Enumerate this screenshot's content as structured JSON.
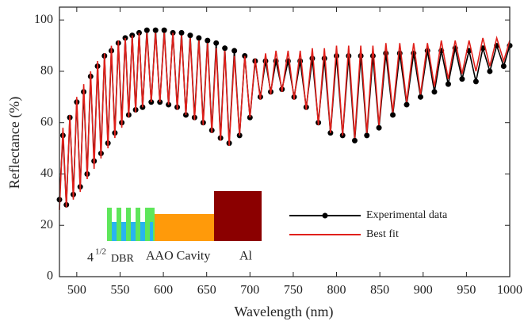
{
  "chart_data": {
    "type": "line",
    "xlabel": "Wavelength (nm)",
    "ylabel": "Reflectance (%)",
    "x": [
      480,
      484,
      488,
      492,
      496,
      500,
      504,
      508,
      512,
      516,
      520,
      524,
      528,
      532,
      536,
      540,
      544,
      548,
      552,
      556,
      560,
      564,
      568,
      572,
      576,
      581,
      586,
      591,
      596,
      601,
      606,
      611,
      616,
      621,
      626,
      631,
      636,
      641,
      646,
      651,
      656,
      661,
      666,
      671,
      676,
      682,
      688,
      694,
      700,
      706,
      712,
      718,
      724,
      730,
      737,
      744,
      751,
      758,
      765,
      772,
      779,
      786,
      793,
      800,
      807,
      814,
      821,
      828,
      835,
      842,
      849,
      857,
      865,
      873,
      881,
      889,
      897,
      905,
      913,
      921,
      929,
      937,
      945,
      953,
      961,
      969,
      977,
      985,
      993,
      1000
    ],
    "series": [
      {
        "name": "Experimental data",
        "color": "#000000",
        "markers": true,
        "values": [
          30,
          55,
          28,
          62,
          32,
          68,
          35,
          72,
          40,
          78,
          45,
          82,
          48,
          86,
          52,
          88,
          56,
          91,
          60,
          93,
          63,
          94,
          65,
          95,
          66,
          96,
          68,
          96,
          68,
          96,
          67,
          95,
          66,
          95,
          63,
          94,
          62,
          93,
          60,
          92,
          57,
          91,
          54,
          89,
          52,
          88,
          55,
          86,
          62,
          84,
          70,
          84,
          72,
          84,
          73,
          84,
          70,
          84,
          66,
          85,
          60,
          85,
          56,
          86,
          55,
          86,
          53,
          86,
          55,
          86,
          58,
          87,
          63,
          87,
          67,
          87,
          70,
          88,
          72,
          88,
          75,
          89,
          77,
          88,
          76,
          89,
          80,
          90,
          82,
          90
        ]
      },
      {
        "name": "Best fit",
        "color": "#e0201b",
        "markers": false,
        "values": [
          26,
          58,
          27,
          63,
          30,
          70,
          33,
          75,
          38,
          80,
          42,
          84,
          46,
          87,
          50,
          90,
          54,
          92,
          58,
          93,
          62,
          94,
          64,
          95,
          66,
          95,
          68,
          95,
          68,
          95,
          67,
          95,
          65,
          94,
          63,
          93,
          61,
          92,
          59,
          91,
          56,
          89,
          53,
          88,
          51,
          86,
          55,
          86,
          62,
          85,
          69,
          87,
          71,
          88,
          72,
          88,
          69,
          88,
          65,
          89,
          59,
          89,
          56,
          90,
          55,
          90,
          54,
          90,
          56,
          90,
          59,
          91,
          64,
          91,
          68,
          91,
          71,
          91,
          74,
          92,
          77,
          92,
          79,
          92,
          80,
          93,
          82,
          93,
          84,
          92
        ]
      }
    ],
    "xlim": [
      480,
      1000
    ],
    "ylim": [
      0,
      105
    ],
    "xticks": [
      500,
      550,
      600,
      650,
      700,
      750,
      800,
      850,
      900,
      950,
      1000
    ],
    "yticks": [
      0,
      20,
      40,
      60,
      80,
      100
    ],
    "inset": {
      "dbr_base": "4",
      "dbr_exp": "1/2",
      "dbr_label": "DBR",
      "cavity_label": "AAO Cavity",
      "metal_label": "Al"
    }
  }
}
